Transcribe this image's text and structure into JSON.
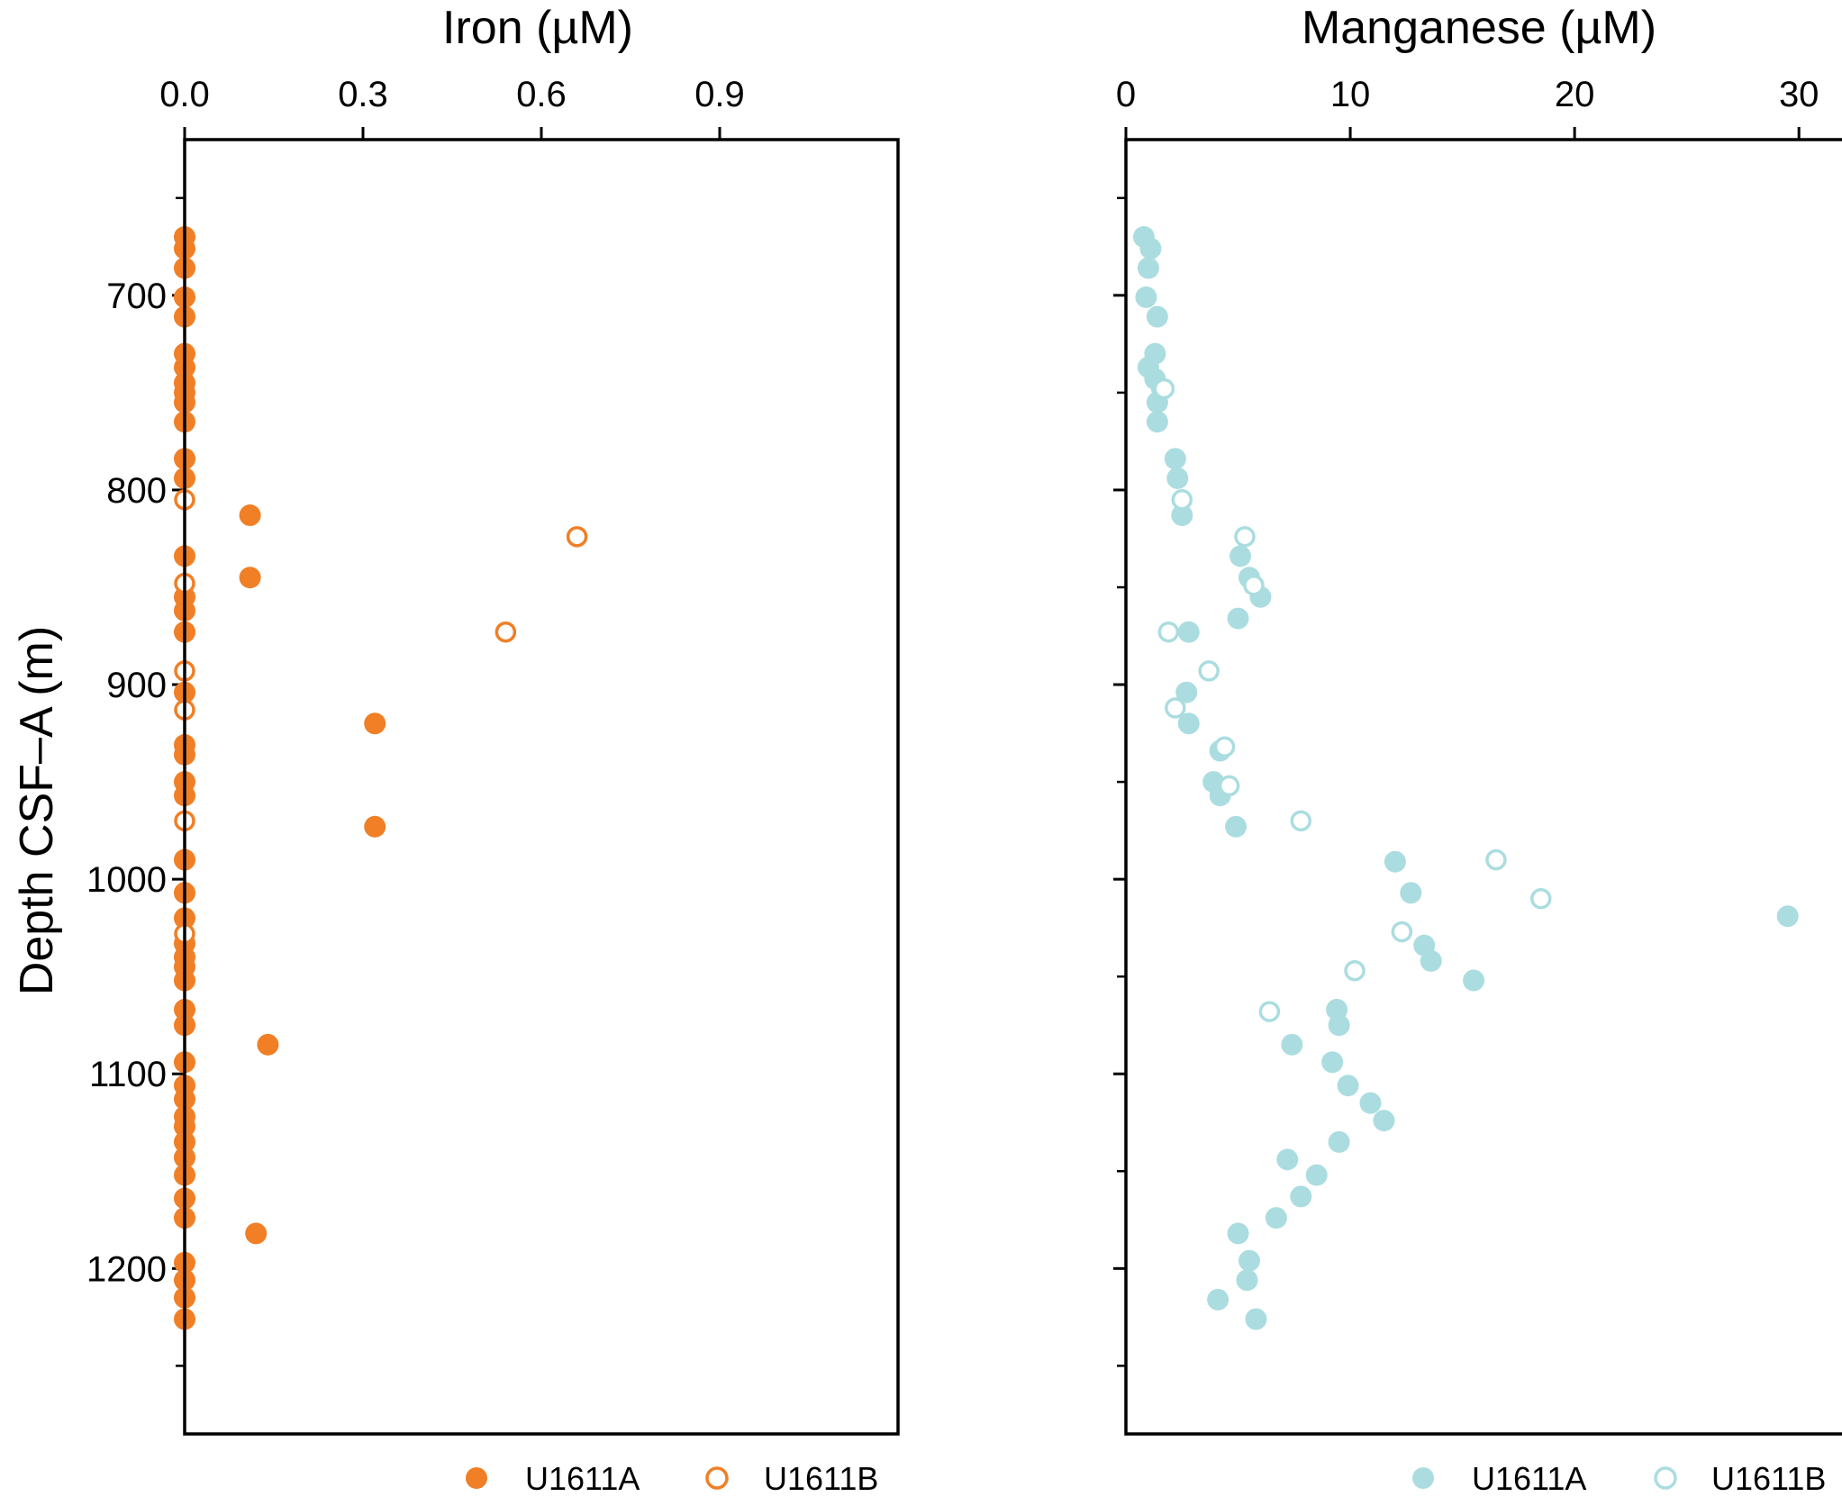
{
  "colors": {
    "iron": "#f07f26",
    "manganese": "#abdde0",
    "axis": "#000000"
  },
  "chart_data": [
    {
      "type": "scatter",
      "title": "Iron (µM)",
      "xlabel": "Iron (µM)",
      "ylabel": "Depth CSF–A (m)",
      "xlim": [
        0,
        1.2
      ],
      "ylim": [
        1285,
        620
      ],
      "x_axis_position": "top",
      "x_ticks": [
        "0.0",
        "0.3",
        "0.6",
        "0.9"
      ],
      "x_tick_values": [
        0,
        0.3,
        0.6,
        0.9
      ],
      "y_ticks": [
        "700",
        "800",
        "900",
        "1000",
        "1100",
        "1200"
      ],
      "y_tick_values": [
        700,
        800,
        900,
        1000,
        1100,
        1200
      ],
      "y_minor_ticks": [
        650,
        750,
        850,
        950,
        1050,
        1150,
        1250
      ],
      "legend": [
        "U1611A",
        "U1611B"
      ],
      "legend_position": "bottom-right",
      "series": [
        {
          "name": "U1611A",
          "marker": "filled",
          "points": [
            [
              0,
              670
            ],
            [
              0,
              676
            ],
            [
              0,
              686
            ],
            [
              0,
              701
            ],
            [
              0,
              711
            ],
            [
              0,
              730
            ],
            [
              0,
              737
            ],
            [
              0,
              745
            ],
            [
              0,
              750
            ],
            [
              0,
              755
            ],
            [
              0,
              765
            ],
            [
              0,
              784
            ],
            [
              0,
              794
            ],
            [
              0.11,
              813
            ],
            [
              0,
              834
            ],
            [
              0.11,
              845
            ],
            [
              0,
              855
            ],
            [
              0,
              862
            ],
            [
              0,
              873
            ],
            [
              0,
              904
            ],
            [
              0.32,
              920
            ],
            [
              0,
              931
            ],
            [
              0,
              936
            ],
            [
              0,
              950
            ],
            [
              0,
              957
            ],
            [
              0.32,
              973
            ],
            [
              0,
              990
            ],
            [
              0,
              1007
            ],
            [
              0,
              1020
            ],
            [
              0,
              1033
            ],
            [
              0,
              1040
            ],
            [
              0,
              1045
            ],
            [
              0,
              1052
            ],
            [
              0,
              1067
            ],
            [
              0,
              1075
            ],
            [
              0.14,
              1085
            ],
            [
              0,
              1094
            ],
            [
              0,
              1106
            ],
            [
              0,
              1113
            ],
            [
              0,
              1122
            ],
            [
              0,
              1127
            ],
            [
              0,
              1135
            ],
            [
              0,
              1143
            ],
            [
              0,
              1152
            ],
            [
              0,
              1164
            ],
            [
              0,
              1174
            ],
            [
              0.12,
              1182
            ],
            [
              0,
              1197
            ],
            [
              0,
              1206
            ],
            [
              0,
              1215
            ],
            [
              0,
              1226
            ]
          ]
        },
        {
          "name": "U1611B",
          "marker": "open",
          "points": [
            [
              0,
              805
            ],
            [
              0.66,
              824
            ],
            [
              0,
              848
            ],
            [
              0.54,
              873
            ],
            [
              0,
              893
            ],
            [
              0,
              913
            ],
            [
              0,
              970
            ],
            [
              0,
              1028
            ]
          ]
        }
      ]
    },
    {
      "type": "scatter",
      "title": "Manganese (µM)",
      "xlabel": "Manganese (µM)",
      "ylabel": "",
      "xlim": [
        0,
        32
      ],
      "ylim": [
        1285,
        620
      ],
      "x_axis_position": "top",
      "x_ticks": [
        "0",
        "10",
        "20",
        "30"
      ],
      "x_tick_values": [
        0,
        10,
        20,
        30
      ],
      "y_ticks": [],
      "y_tick_values": [
        700,
        800,
        900,
        1000,
        1100,
        1200
      ],
      "y_minor_ticks": [
        650,
        750,
        850,
        950,
        1050,
        1150,
        1250
      ],
      "legend": [
        "U1611A",
        "U1611B"
      ],
      "legend_position": "bottom-right",
      "series": [
        {
          "name": "U1611A",
          "marker": "filled",
          "points": [
            [
              0.8,
              670
            ],
            [
              1.1,
              676
            ],
            [
              1.0,
              686
            ],
            [
              0.9,
              701
            ],
            [
              1.4,
              711
            ],
            [
              1.3,
              730
            ],
            [
              1.0,
              737
            ],
            [
              1.3,
              743
            ],
            [
              1.6,
              748
            ],
            [
              1.4,
              755
            ],
            [
              1.4,
              765
            ],
            [
              2.2,
              784
            ],
            [
              2.3,
              794
            ],
            [
              2.5,
              813
            ],
            [
              5.1,
              834
            ],
            [
              5.5,
              845
            ],
            [
              6.0,
              855
            ],
            [
              5.0,
              866
            ],
            [
              2.8,
              873
            ],
            [
              2.7,
              904
            ],
            [
              2.8,
              920
            ],
            [
              4.2,
              934
            ],
            [
              3.9,
              950
            ],
            [
              4.2,
              957
            ],
            [
              4.9,
              973
            ],
            [
              12.0,
              991
            ],
            [
              12.7,
              1007
            ],
            [
              29.5,
              1019
            ],
            [
              13.3,
              1034
            ],
            [
              13.6,
              1042
            ],
            [
              15.5,
              1052
            ],
            [
              9.4,
              1067
            ],
            [
              9.5,
              1075
            ],
            [
              7.4,
              1085
            ],
            [
              9.2,
              1094
            ],
            [
              9.9,
              1106
            ],
            [
              10.9,
              1115
            ],
            [
              11.5,
              1124
            ],
            [
              9.5,
              1135
            ],
            [
              7.2,
              1144
            ],
            [
              8.5,
              1152
            ],
            [
              7.8,
              1163
            ],
            [
              6.7,
              1174
            ],
            [
              5.0,
              1182
            ],
            [
              5.5,
              1196
            ],
            [
              5.4,
              1206
            ],
            [
              4.1,
              1216
            ],
            [
              5.8,
              1226
            ]
          ]
        },
        {
          "name": "U1611B",
          "marker": "open",
          "points": [
            [
              1.7,
              748
            ],
            [
              2.5,
              805
            ],
            [
              5.3,
              824
            ],
            [
              5.7,
              849
            ],
            [
              1.9,
              873
            ],
            [
              3.7,
              893
            ],
            [
              2.2,
              912
            ],
            [
              4.4,
              932
            ],
            [
              4.6,
              952
            ],
            [
              7.8,
              970
            ],
            [
              16.5,
              990
            ],
            [
              18.5,
              1010
            ],
            [
              12.3,
              1027
            ],
            [
              10.2,
              1047
            ],
            [
              6.4,
              1068
            ]
          ]
        }
      ]
    }
  ]
}
